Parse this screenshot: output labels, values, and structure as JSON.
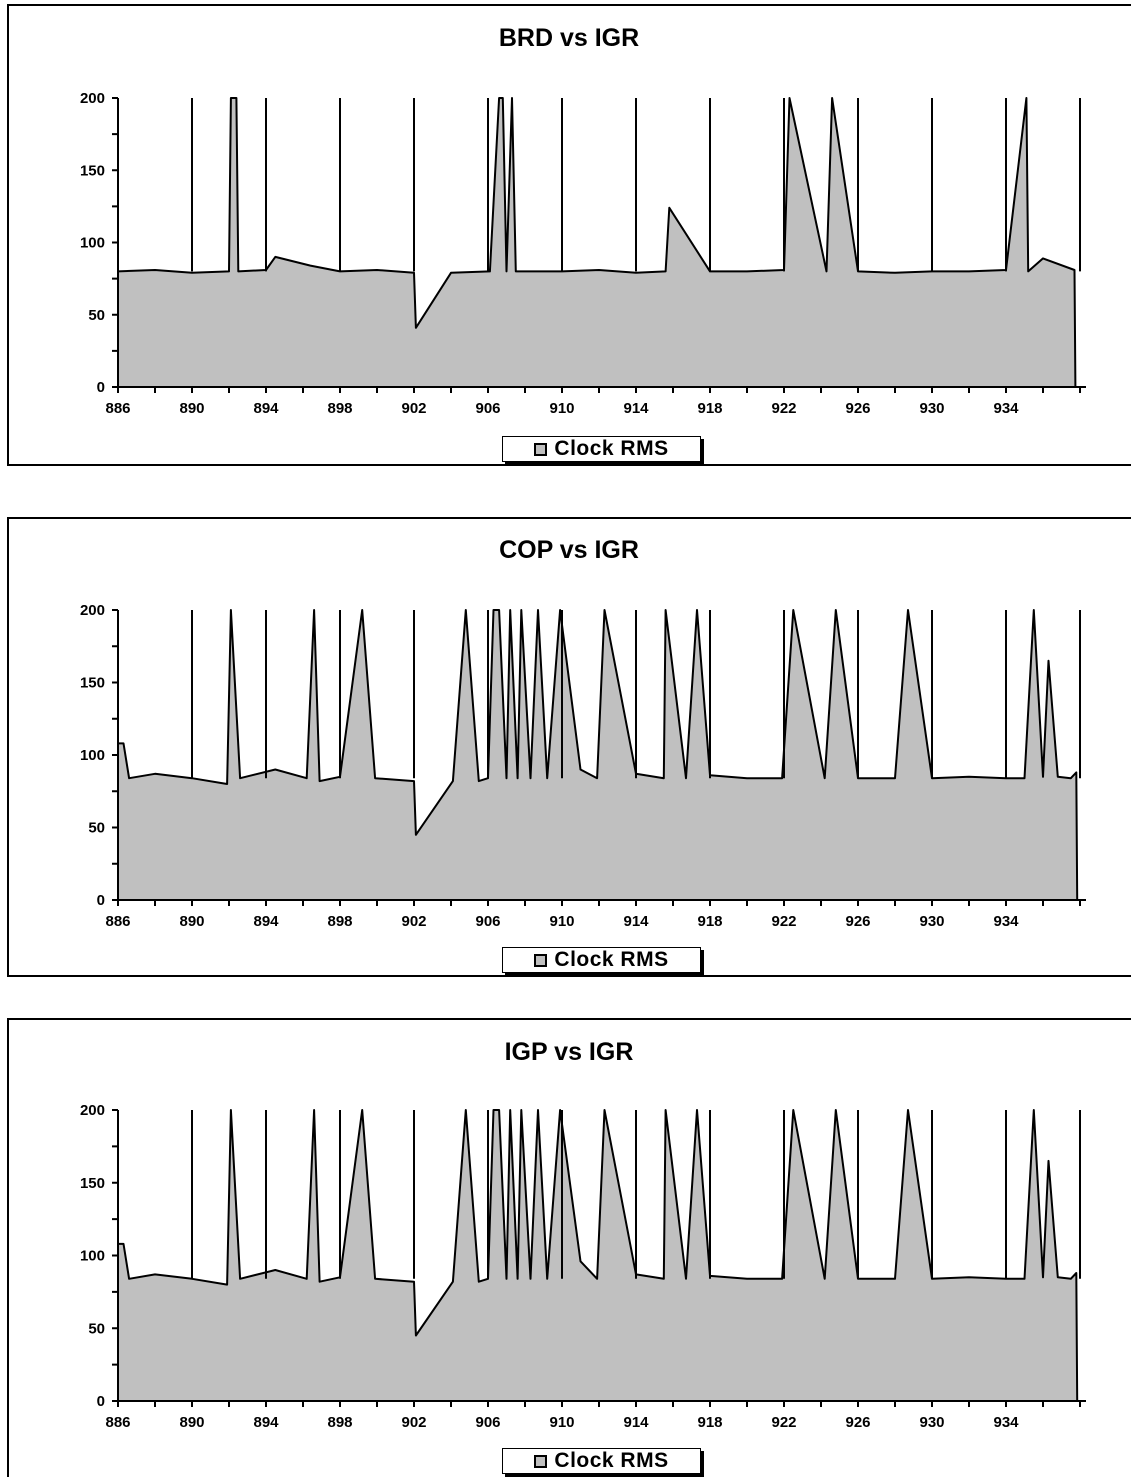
{
  "colors": {
    "area_fill": "#c0c0c0",
    "line": "#000000",
    "background": "#ffffff"
  },
  "chart_data": [
    {
      "type": "area",
      "title": "BRD vs IGR",
      "xlabel": "",
      "ylabel": "",
      "xlim": [
        886,
        938
      ],
      "ylim": [
        0,
        200
      ],
      "xticks": [
        886,
        890,
        894,
        898,
        902,
        906,
        910,
        914,
        918,
        922,
        926,
        930,
        934
      ],
      "yticks": [
        0,
        50,
        100,
        150,
        200
      ],
      "grid": false,
      "legend_position": "bottom",
      "series": [
        {
          "name": "Clock RMS",
          "baseline": 80,
          "x": [
            886,
            888,
            890,
            892,
            892.1,
            892.4,
            892.5,
            894,
            894.5,
            896.4,
            898,
            900,
            902,
            902.1,
            904,
            906.1,
            906.6,
            906.8,
            907,
            907.3,
            907.5,
            910,
            912,
            914,
            915.6,
            915.8,
            918,
            920,
            922,
            922.3,
            924.3,
            924.6,
            926,
            928,
            930,
            932,
            934,
            935.1,
            935.2,
            936,
            937.7,
            937.75
          ],
          "y": [
            80,
            81,
            79,
            80,
            200,
            200,
            80,
            81,
            90,
            84,
            80,
            81,
            79,
            41,
            79,
            80,
            200,
            200,
            80,
            200,
            80,
            80,
            81,
            79,
            80,
            124,
            80,
            80,
            81,
            200,
            80,
            200,
            80,
            79,
            80,
            80,
            81,
            200,
            80,
            89,
            81,
            0
          ],
          "spikes": [
            890,
            894,
            898,
            902,
            906,
            910,
            914,
            918,
            922,
            926,
            930,
            934,
            938
          ]
        }
      ]
    },
    {
      "type": "area",
      "title": "COP vs IGR",
      "xlabel": "",
      "ylabel": "",
      "xlim": [
        886,
        938
      ],
      "ylim": [
        0,
        200
      ],
      "xticks": [
        886,
        890,
        894,
        898,
        902,
        906,
        910,
        914,
        918,
        922,
        926,
        930,
        934
      ],
      "yticks": [
        0,
        50,
        100,
        150,
        200
      ],
      "grid": false,
      "legend_position": "bottom",
      "series": [
        {
          "name": "Clock RMS",
          "baseline": 84,
          "x": [
            886,
            886.3,
            886.6,
            888,
            890,
            891.9,
            892.1,
            892.6,
            894.5,
            896.2,
            896.6,
            896.9,
            898,
            899.2,
            899.9,
            902,
            902.1,
            904.1,
            904.8,
            905.5,
            906,
            906.3,
            906.6,
            907,
            907.2,
            907.6,
            907.8,
            908.3,
            908.7,
            909.2,
            909.9,
            911,
            911.9,
            912.3,
            914,
            915.5,
            915.6,
            916.7,
            917.3,
            918,
            920,
            921.9,
            922.5,
            924.2,
            924.8,
            926,
            928,
            928.7,
            930,
            932,
            934,
            935,
            935.5,
            936,
            936.3,
            936.8,
            937.5,
            937.8,
            937.85
          ],
          "y": [
            108,
            108,
            84,
            87,
            84,
            80,
            200,
            84,
            90,
            84,
            200,
            82,
            85,
            200,
            84,
            82,
            45,
            82,
            200,
            82,
            84,
            200,
            200,
            84,
            200,
            84,
            200,
            84,
            200,
            84,
            200,
            90,
            84,
            200,
            87,
            84,
            200,
            84,
            200,
            86,
            84,
            84,
            200,
            84,
            200,
            84,
            84,
            200,
            84,
            85,
            84,
            84,
            200,
            85,
            165,
            85,
            84,
            88,
            0
          ],
          "spikes": [
            890,
            894,
            898,
            902,
            906,
            910,
            914,
            918,
            922,
            926,
            930,
            934,
            938
          ]
        }
      ]
    },
    {
      "type": "area",
      "title": "IGP vs IGR",
      "xlabel": "",
      "ylabel": "",
      "xlim": [
        886,
        938
      ],
      "ylim": [
        0,
        200
      ],
      "xticks": [
        886,
        890,
        894,
        898,
        902,
        906,
        910,
        914,
        918,
        922,
        926,
        930,
        934
      ],
      "yticks": [
        0,
        50,
        100,
        150,
        200
      ],
      "grid": false,
      "legend_position": "bottom",
      "series": [
        {
          "name": "Clock RMS",
          "baseline": 84,
          "x": [
            886,
            886.3,
            886.6,
            888,
            890,
            891.9,
            892.1,
            892.6,
            894.5,
            896.2,
            896.6,
            896.9,
            898,
            899.2,
            899.9,
            902,
            902.1,
            904.1,
            904.8,
            905.5,
            906,
            906.3,
            906.6,
            907,
            907.2,
            907.6,
            907.8,
            908.3,
            908.7,
            909.2,
            909.9,
            911,
            911.9,
            912.3,
            914,
            915.5,
            915.6,
            916.7,
            917.3,
            918,
            920,
            921.9,
            922.5,
            924.2,
            924.8,
            926,
            928,
            928.7,
            930,
            932,
            934,
            935,
            935.5,
            936,
            936.3,
            936.8,
            937.5,
            937.8,
            937.85
          ],
          "y": [
            108,
            108,
            84,
            87,
            84,
            80,
            200,
            84,
            90,
            84,
            200,
            82,
            85,
            200,
            84,
            82,
            45,
            82,
            200,
            82,
            84,
            200,
            200,
            84,
            200,
            84,
            200,
            84,
            200,
            84,
            200,
            96,
            84,
            200,
            87,
            84,
            200,
            84,
            200,
            86,
            84,
            84,
            200,
            84,
            200,
            84,
            84,
            200,
            84,
            85,
            84,
            84,
            200,
            85,
            165,
            85,
            84,
            88,
            0
          ],
          "spikes": [
            890,
            894,
            898,
            902,
            906,
            910,
            914,
            918,
            922,
            926,
            930,
            934,
            938
          ]
        }
      ]
    }
  ]
}
